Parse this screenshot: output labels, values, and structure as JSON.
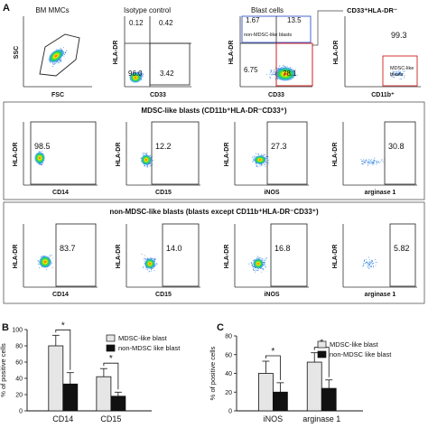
{
  "panel_letters": {
    "a": "A",
    "b": "B",
    "c": "C"
  },
  "row1": {
    "plot1": {
      "title": "BM MMCs",
      "xlabel": "FSC",
      "ylabel": "SSC"
    },
    "plot2": {
      "title": "Isotype control",
      "xlabel": "CD33",
      "ylabel": "HLA-DR",
      "q_ul": "0.12",
      "q_ur": "0.42",
      "q_ll": "96.0",
      "q_lr": "3.42"
    },
    "plot3": {
      "title": "Blast cells",
      "xlabel": "CD33",
      "ylabel": "HLA-DR",
      "q_ul": "1.67",
      "q_ur": "13.5",
      "q_ll": "6.75",
      "q_lr": "78.1",
      "gate_label": "non-MDSC-like blasts"
    },
    "plot4": {
      "title": "CD33⁺HLA-DR⁻",
      "xlabel": "CD11b⁺",
      "ylabel": "HLA-DR",
      "value": "99.3",
      "gate_label_1": "MDSC-like",
      "gate_label_2": "blasts"
    }
  },
  "row2": {
    "header": "MDSC-like blasts (CD11b⁺HLA-DR⁻CD33⁺)",
    "ylabel": "HLA-DR",
    "plots": [
      {
        "xlabel": "CD14",
        "value": "98.5"
      },
      {
        "xlabel": "CD15",
        "value": "12.2"
      },
      {
        "xlabel": "iNOS",
        "value": "27.3"
      },
      {
        "xlabel": "arginase 1",
        "value": "30.8"
      }
    ]
  },
  "row3": {
    "header": "non-MDSC-like blasts (blasts except CD11b⁺HLA-DR⁻CD33⁺)",
    "ylabel": "HLA-DR",
    "plots": [
      {
        "xlabel": "CD14",
        "value": "83.7"
      },
      {
        "xlabel": "CD15",
        "value": "14.0"
      },
      {
        "xlabel": "iNOS",
        "value": "16.8"
      },
      {
        "xlabel": "arginase 1",
        "value": "5.82"
      }
    ]
  },
  "chart_data": [
    {
      "type": "bar",
      "panel": "B",
      "ylabel": "% of positive cells",
      "ylim": [
        0,
        100
      ],
      "yticks": [
        "0",
        "20",
        "40",
        "60",
        "80",
        "100"
      ],
      "categories": [
        "CD14",
        "CD15"
      ],
      "series": [
        {
          "name": "MDSC-like blast",
          "color": "#e6e6e6",
          "values": [
            80,
            42
          ],
          "errors": [
            13,
            10
          ]
        },
        {
          "name": "non-MDSC like blast",
          "color": "#111111",
          "values": [
            33,
            18
          ],
          "errors": [
            14,
            5
          ]
        }
      ],
      "significance": [
        "*",
        "*"
      ],
      "legend": "top-right"
    },
    {
      "type": "bar",
      "panel": "C",
      "ylabel": "% of positive cells",
      "ylim": [
        0,
        80
      ],
      "yticks": [
        "0",
        "20",
        "40",
        "60",
        "80"
      ],
      "categories": [
        "iNOS",
        "arginase 1"
      ],
      "series": [
        {
          "name": "MDSC-like blast",
          "color": "#e6e6e6",
          "values": [
            40,
            52
          ],
          "errors": [
            13,
            10
          ]
        },
        {
          "name": "non-MDSC like blast",
          "color": "#111111",
          "values": [
            20,
            24
          ],
          "errors": [
            10,
            9
          ]
        }
      ],
      "significance": [
        "*",
        "*"
      ],
      "legend": "top-right"
    }
  ]
}
